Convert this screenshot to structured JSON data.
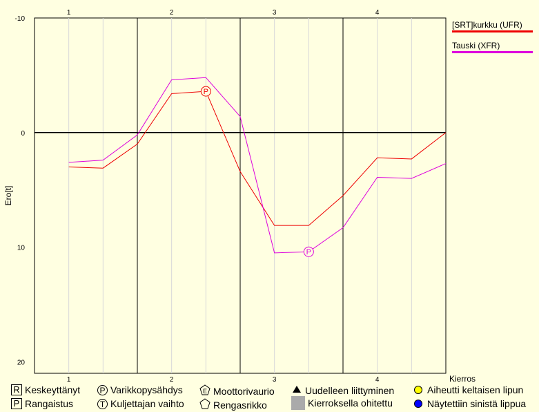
{
  "chart_data": {
    "type": "line",
    "ylabel": "Ero[t]",
    "xlabel": "Kierros",
    "x": [
      1,
      1.5,
      2,
      2.5,
      3,
      3.5,
      4,
      4.5,
      5,
      5.5,
      6,
      6.5,
      7
    ],
    "lap_labels": [
      "1",
      "2",
      "3",
      "4"
    ],
    "lap_positions": [
      1,
      2.5,
      4,
      5.5
    ],
    "lap_boundaries": [
      2,
      3.5,
      5
    ],
    "y_ticks": [
      "-10",
      "0",
      "10",
      "20"
    ],
    "ylim": [
      21,
      -10
    ],
    "xlim": [
      0.5,
      6.5
    ],
    "series": [
      {
        "name": "[SRT]kurkku (UFR)",
        "color": "#ee0000",
        "x": [
          1,
          1.5,
          2,
          2.5,
          3,
          3.5,
          4,
          4.5,
          5,
          5.5,
          6,
          6.5
        ],
        "y": [
          3.0,
          3.1,
          1.0,
          -3.4,
          -3.6,
          3.4,
          8.1,
          8.1,
          5.5,
          2.2,
          2.3,
          0.0
        ],
        "pit": {
          "x": 3,
          "y": -3.6
        }
      },
      {
        "name": "Tauski (XFR)",
        "color": "#dd00dd",
        "x": [
          1,
          1.5,
          2,
          2.5,
          3,
          3.5,
          4,
          4.5,
          5,
          5.5,
          6,
          6.5
        ],
        "y": [
          2.6,
          2.4,
          0.2,
          -4.6,
          -4.8,
          -1.4,
          10.5,
          10.4,
          8.3,
          3.9,
          4.0,
          2.7
        ],
        "pit": {
          "x": 4.5,
          "y": 10.4
        }
      }
    ]
  },
  "footer_legend": {
    "keskeyttanyt": "Keskeyttänyt",
    "rangaistus": "Rangaistus",
    "varikko": "Varikkopysähdys",
    "kuljettaja": "Kuljettajan vaihto",
    "moottori": "Moottorivaurio",
    "rengas": "Rengasrikko",
    "uudelleen": "Uudelleen liittyminen",
    "ohitettu": "Kierroksella ohitettu",
    "keltainen": "Aiheutti keltaisen lipun",
    "sininen": "Näytettiin sinistä lippua",
    "sym_r": "R",
    "sym_p": "P",
    "sym_t": "T",
    "sym_e": "E"
  },
  "colors": {
    "background": "#ffffe1",
    "yellow": "#ffff00",
    "blue": "#0000ff"
  }
}
